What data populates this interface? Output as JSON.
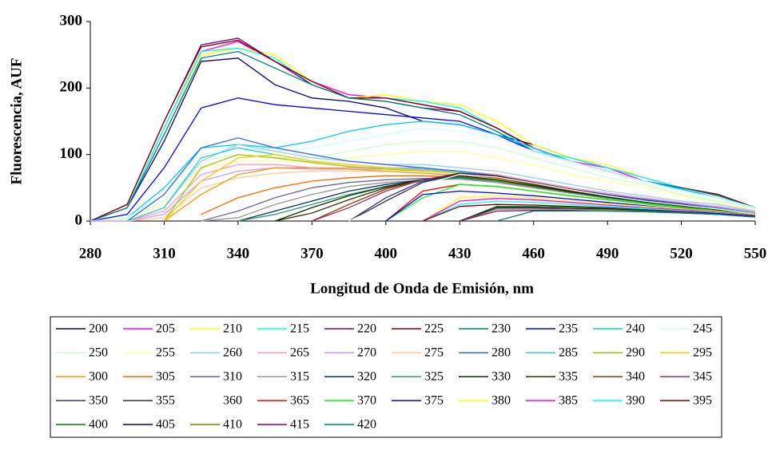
{
  "chart_data": {
    "type": "line",
    "xlabel": "Longitud de Onda de Emisión, nm",
    "ylabel": "Fluorescencia, AUF",
    "x": [
      280,
      295,
      310,
      325,
      340,
      355,
      370,
      385,
      400,
      415,
      430,
      445,
      460,
      475,
      490,
      505,
      520,
      535,
      550
    ],
    "xlim": [
      280,
      550
    ],
    "xticks": [
      280,
      310,
      340,
      370,
      400,
      430,
      460,
      490,
      520,
      550
    ],
    "ylim": [
      0,
      300
    ],
    "yticks": [
      0,
      100,
      200,
      300
    ],
    "grid": false,
    "legend": "bottom",
    "series": [
      {
        "name": "200",
        "color": "#000080",
        "values": [
          0,
          20,
          120,
          240,
          245,
          205,
          185,
          180,
          170,
          150,
          145,
          130,
          115,
          95,
          80,
          65,
          50,
          40,
          20
        ]
      },
      {
        "name": "205",
        "color": "#FF00FF",
        "values": [
          0,
          20,
          140,
          255,
          270,
          240,
          210,
          190,
          185,
          175,
          165,
          140,
          110,
          90,
          80,
          60,
          50,
          40,
          20
        ]
      },
      {
        "name": "210",
        "color": "#FFFF00",
        "values": [
          0,
          20,
          140,
          250,
          260,
          250,
          210,
          185,
          190,
          180,
          175,
          150,
          115,
          95,
          85,
          65,
          50,
          40,
          20
        ]
      },
      {
        "name": "215",
        "color": "#00FFFF",
        "values": [
          0,
          20,
          140,
          255,
          260,
          245,
          205,
          185,
          185,
          180,
          170,
          140,
          105,
          95,
          80,
          65,
          50,
          40,
          20
        ]
      },
      {
        "name": "220",
        "color": "#800080",
        "values": [
          0,
          25,
          150,
          265,
          275,
          240,
          205,
          185,
          180,
          170,
          165,
          140,
          110,
          90,
          75,
          60,
          50,
          40,
          20
        ]
      },
      {
        "name": "225",
        "color": "#800000",
        "values": [
          0,
          25,
          150,
          262,
          272,
          240,
          210,
          185,
          185,
          175,
          165,
          140,
          110,
          90,
          75,
          60,
          50,
          40,
          20
        ]
      },
      {
        "name": "230",
        "color": "#008080",
        "values": [
          0,
          20,
          130,
          245,
          255,
          230,
          205,
          185,
          180,
          170,
          160,
          135,
          105,
          90,
          75,
          60,
          50,
          38,
          20
        ]
      },
      {
        "name": "235",
        "color": "#0000FF",
        "values": [
          0,
          10,
          80,
          170,
          185,
          175,
          170,
          165,
          160,
          155,
          150,
          130,
          105,
          90,
          75,
          60,
          48,
          35,
          20
        ]
      },
      {
        "name": "240",
        "color": "#00CCFF",
        "values": [
          0,
          5,
          50,
          110,
          115,
          110,
          120,
          135,
          145,
          150,
          145,
          130,
          110,
          90,
          75,
          60,
          48,
          35,
          20
        ]
      },
      {
        "name": "245",
        "color": "#CCFFFF",
        "values": [
          0,
          5,
          40,
          100,
          110,
          105,
          110,
          120,
          130,
          140,
          135,
          125,
          105,
          90,
          75,
          60,
          45,
          35,
          20
        ]
      },
      {
        "name": "250",
        "color": "#CCFFCC",
        "values": [
          0,
          3,
          30,
          90,
          100,
          95,
          95,
          105,
          115,
          120,
          120,
          110,
          95,
          80,
          65,
          55,
          40,
          30,
          18
        ]
      },
      {
        "name": "255",
        "color": "#FFFF99",
        "values": [
          0,
          2,
          25,
          80,
          90,
          90,
          90,
          95,
          100,
          105,
          105,
          95,
          85,
          70,
          60,
          50,
          38,
          28,
          16
        ]
      },
      {
        "name": "260",
        "color": "#99CCFF",
        "values": [
          0,
          0,
          20,
          90,
          115,
          105,
          95,
          90,
          85,
          85,
          80,
          75,
          65,
          55,
          45,
          38,
          30,
          25,
          15
        ]
      },
      {
        "name": "265",
        "color": "#FF99CC",
        "values": [
          0,
          0,
          15,
          70,
          85,
          85,
          80,
          80,
          80,
          80,
          75,
          70,
          60,
          50,
          42,
          35,
          28,
          22,
          14
        ]
      },
      {
        "name": "270",
        "color": "#CC99FF",
        "values": [
          0,
          0,
          10,
          60,
          75,
          80,
          78,
          78,
          78,
          78,
          72,
          65,
          58,
          48,
          40,
          33,
          27,
          20,
          13
        ]
      },
      {
        "name": "275",
        "color": "#FFCC99",
        "values": [
          null,
          0,
          5,
          50,
          65,
          72,
          75,
          75,
          75,
          72,
          70,
          62,
          55,
          45,
          38,
          32,
          25,
          20,
          12
        ]
      },
      {
        "name": "280",
        "color": "#3366FF",
        "values": [
          null,
          0,
          40,
          110,
          125,
          110,
          100,
          90,
          85,
          80,
          75,
          68,
          58,
          48,
          40,
          33,
          26,
          20,
          12
        ]
      },
      {
        "name": "285",
        "color": "#33CCCC",
        "values": [
          null,
          0,
          20,
          95,
          110,
          100,
          90,
          85,
          80,
          78,
          74,
          66,
          56,
          46,
          38,
          31,
          25,
          19,
          12
        ]
      },
      {
        "name": "290",
        "color": "#99CC00",
        "values": [
          null,
          null,
          0,
          80,
          100,
          95,
          88,
          82,
          78,
          75,
          72,
          64,
          55,
          45,
          37,
          30,
          24,
          18,
          11
        ]
      },
      {
        "name": "295",
        "color": "#FFCC00",
        "values": [
          null,
          null,
          0,
          60,
          95,
          100,
          90,
          85,
          80,
          76,
          72,
          64,
          54,
          44,
          36,
          29,
          23,
          17,
          11
        ]
      },
      {
        "name": "300",
        "color": "#FF9900",
        "values": [
          null,
          null,
          0,
          40,
          70,
          80,
          80,
          78,
          75,
          72,
          68,
          60,
          50,
          42,
          35,
          28,
          22,
          17,
          10
        ]
      },
      {
        "name": "305",
        "color": "#FF6600",
        "values": [
          null,
          null,
          null,
          10,
          35,
          50,
          60,
          65,
          68,
          68,
          66,
          60,
          50,
          42,
          35,
          28,
          22,
          16,
          10
        ]
      },
      {
        "name": "310",
        "color": "#666699",
        "values": [
          null,
          null,
          null,
          0,
          15,
          35,
          50,
          58,
          62,
          64,
          64,
          58,
          50,
          42,
          35,
          28,
          22,
          16,
          10
        ]
      },
      {
        "name": "315",
        "color": "#969696",
        "values": [
          null,
          null,
          null,
          0,
          5,
          25,
          40,
          52,
          58,
          62,
          63,
          58,
          50,
          42,
          34,
          28,
          22,
          16,
          10
        ]
      },
      {
        "name": "320",
        "color": "#003366",
        "values": [
          null,
          null,
          null,
          null,
          0,
          15,
          30,
          45,
          55,
          62,
          66,
          60,
          52,
          43,
          35,
          28,
          22,
          16,
          10
        ]
      },
      {
        "name": "325",
        "color": "#339966",
        "values": [
          null,
          null,
          null,
          null,
          0,
          10,
          25,
          40,
          52,
          60,
          65,
          60,
          52,
          43,
          35,
          28,
          22,
          16,
          10
        ]
      },
      {
        "name": "330",
        "color": "#003300",
        "values": [
          null,
          null,
          null,
          null,
          null,
          0,
          20,
          38,
          52,
          62,
          68,
          62,
          53,
          44,
          36,
          29,
          23,
          17,
          10
        ]
      },
      {
        "name": "335",
        "color": "#333300",
        "values": [
          null,
          null,
          null,
          null,
          null,
          0,
          12,
          32,
          50,
          62,
          70,
          65,
          55,
          45,
          37,
          30,
          23,
          17,
          10
        ]
      },
      {
        "name": "340",
        "color": "#993300",
        "values": [
          null,
          null,
          null,
          null,
          null,
          null,
          0,
          25,
          48,
          62,
          70,
          65,
          56,
          46,
          38,
          30,
          24,
          18,
          10
        ]
      },
      {
        "name": "345",
        "color": "#993366",
        "values": [
          null,
          null,
          null,
          null,
          null,
          null,
          0,
          20,
          45,
          62,
          72,
          66,
          57,
          47,
          38,
          31,
          24,
          18,
          10
        ]
      },
      {
        "name": "350",
        "color": "#333399",
        "values": [
          null,
          null,
          null,
          null,
          null,
          null,
          null,
          0,
          35,
          60,
          72,
          68,
          58,
          48,
          39,
          31,
          25,
          18,
          10
        ]
      },
      {
        "name": "355",
        "color": "#333333",
        "values": [
          null,
          null,
          null,
          null,
          null,
          null,
          null,
          0,
          30,
          58,
          72,
          68,
          58,
          48,
          39,
          31,
          25,
          18,
          10
        ]
      },
      {
        "name": "360",
        "color": "#FFFFFF",
        "values": [
          null,
          null,
          null,
          null,
          null,
          null,
          null,
          0,
          25,
          55,
          70,
          66,
          57,
          47,
          38,
          30,
          24,
          18,
          10
        ]
      },
      {
        "name": "365",
        "color": "#FF0000",
        "values": [
          null,
          null,
          null,
          null,
          null,
          null,
          null,
          null,
          0,
          45,
          55,
          52,
          45,
          38,
          32,
          26,
          20,
          15,
          9
        ]
      },
      {
        "name": "370",
        "color": "#00FF00",
        "values": [
          null,
          null,
          null,
          null,
          null,
          null,
          null,
          null,
          0,
          35,
          55,
          52,
          45,
          38,
          32,
          26,
          20,
          15,
          9
        ]
      },
      {
        "name": "375",
        "color": "#0000FF",
        "values": [
          null,
          null,
          null,
          null,
          null,
          null,
          null,
          null,
          0,
          40,
          45,
          42,
          38,
          33,
          28,
          23,
          18,
          14,
          8
        ]
      },
      {
        "name": "380",
        "color": "#FFFF00",
        "values": [
          null,
          null,
          null,
          null,
          null,
          null,
          null,
          null,
          null,
          0,
          35,
          38,
          35,
          30,
          26,
          22,
          18,
          14,
          8
        ]
      },
      {
        "name": "385",
        "color": "#FF00FF",
        "values": [
          null,
          null,
          null,
          null,
          null,
          null,
          null,
          null,
          null,
          0,
          30,
          34,
          32,
          28,
          24,
          20,
          17,
          13,
          8
        ]
      },
      {
        "name": "390",
        "color": "#00FFFF",
        "values": [
          null,
          null,
          null,
          null,
          null,
          null,
          null,
          null,
          null,
          0,
          25,
          30,
          28,
          25,
          22,
          19,
          15,
          12,
          7
        ]
      },
      {
        "name": "395",
        "color": "#800000",
        "values": [
          null,
          null,
          null,
          null,
          null,
          null,
          null,
          null,
          null,
          0,
          22,
          25,
          24,
          22,
          20,
          17,
          14,
          11,
          7
        ]
      },
      {
        "name": "400",
        "color": "#008000",
        "values": [
          null,
          null,
          null,
          null,
          null,
          null,
          null,
          null,
          null,
          null,
          0,
          22,
          22,
          21,
          19,
          17,
          14,
          11,
          7
        ]
      },
      {
        "name": "405",
        "color": "#000080",
        "values": [
          null,
          null,
          null,
          null,
          null,
          null,
          null,
          null,
          null,
          null,
          0,
          20,
          20,
          19,
          18,
          16,
          14,
          11,
          7
        ]
      },
      {
        "name": "410",
        "color": "#808000",
        "values": [
          null,
          null,
          null,
          null,
          null,
          null,
          null,
          null,
          null,
          null,
          0,
          18,
          18,
          18,
          17,
          15,
          13,
          10,
          6
        ]
      },
      {
        "name": "415",
        "color": "#800080",
        "values": [
          null,
          null,
          null,
          null,
          null,
          null,
          null,
          null,
          null,
          null,
          0,
          15,
          16,
          16,
          15,
          14,
          12,
          10,
          6
        ]
      },
      {
        "name": "420",
        "color": "#008080",
        "values": [
          null,
          null,
          null,
          null,
          null,
          null,
          null,
          null,
          null,
          null,
          null,
          0,
          15,
          15,
          15,
          14,
          12,
          10,
          6
        ]
      }
    ]
  }
}
